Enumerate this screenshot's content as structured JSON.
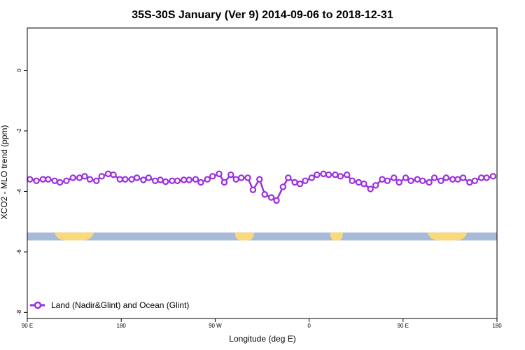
{
  "chart_data": {
    "type": "line",
    "title": "35S-30S January (Ver 9)   2014-09-06 to 2018-12-31",
    "xlabel": "Longitude (deg E)",
    "ylabel": "XCO2 - MLO trend (ppm)",
    "xlim": [
      90,
      450
    ],
    "ylim": [
      -8.2,
      1.4
    ],
    "x_ticks": [
      {
        "value": 90,
        "label": "90 E"
      },
      {
        "value": 162,
        "label": "180"
      },
      {
        "value": 234,
        "label": "90 W"
      },
      {
        "value": 306,
        "label": "0"
      },
      {
        "value": 378,
        "label": "90 E"
      },
      {
        "value": 450,
        "label": "180"
      }
    ],
    "y_ticks": [
      {
        "value": 0,
        "label": "0"
      },
      {
        "value": -2,
        "label": "-2"
      },
      {
        "value": -4,
        "label": "-4"
      },
      {
        "value": -6,
        "label": "-6"
      },
      {
        "value": -8,
        "label": "-8"
      }
    ],
    "grid": false,
    "legend_position": "bottom-left",
    "series": [
      {
        "name": "Land (Nadir&Glint) and Ocean (Glint)",
        "color": "#9b30e0",
        "x": [
          92,
          97,
          102,
          106,
          111,
          115,
          120,
          125,
          130,
          134,
          138,
          143,
          147,
          152,
          156,
          161,
          165,
          170,
          174,
          179,
          183,
          188,
          192,
          196,
          201,
          205,
          210,
          214,
          219,
          223,
          228,
          232,
          237,
          241,
          246,
          250,
          254,
          259,
          263,
          268,
          272,
          277,
          281,
          286,
          290,
          295,
          299,
          303,
          308,
          312,
          317,
          321,
          326,
          330,
          335,
          339,
          344,
          348,
          353,
          357,
          362,
          366,
          371,
          375,
          380,
          384,
          389,
          393,
          398,
          402,
          407,
          411,
          416,
          420,
          424,
          429,
          433,
          438,
          442,
          447
        ],
        "values": [
          -3.6,
          -3.65,
          -3.6,
          -3.6,
          -3.65,
          -3.7,
          -3.65,
          -3.55,
          -3.55,
          -3.5,
          -3.6,
          -3.65,
          -3.5,
          -3.42,
          -3.45,
          -3.6,
          -3.6,
          -3.6,
          -3.55,
          -3.62,
          -3.55,
          -3.65,
          -3.62,
          -3.68,
          -3.65,
          -3.65,
          -3.62,
          -3.62,
          -3.6,
          -3.7,
          -3.6,
          -3.5,
          -3.42,
          -3.7,
          -3.45,
          -3.6,
          -3.55,
          -3.55,
          -3.95,
          -3.6,
          -4.1,
          -4.2,
          -4.3,
          -3.85,
          -3.55,
          -3.7,
          -3.75,
          -3.65,
          -3.55,
          -3.45,
          -3.42,
          -3.45,
          -3.45,
          -3.5,
          -3.45,
          -3.65,
          -3.7,
          -3.75,
          -3.92,
          -3.8,
          -3.6,
          -3.65,
          -3.55,
          -3.7,
          -3.55,
          -3.65,
          -3.6,
          -3.65,
          -3.7,
          -3.55,
          -3.65,
          -3.55,
          -3.6,
          -3.6,
          -3.55,
          -3.7,
          -3.65,
          -3.55,
          -3.55,
          -3.5
        ]
      }
    ],
    "surface_band": {
      "y_range": [
        -5.62,
        -5.36
      ],
      "ocean_color": "#a7bbd8",
      "land_color": "#f9d97c",
      "land_spans": [
        [
          111,
          141
        ],
        [
          249,
          264
        ],
        [
          322,
          332
        ],
        [
          397,
          427
        ]
      ]
    }
  }
}
